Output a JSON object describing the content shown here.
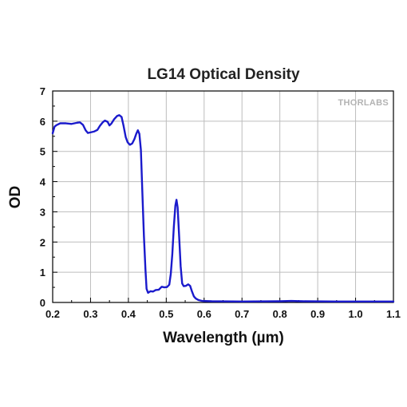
{
  "chart_data": {
    "type": "line",
    "title": "LG14 Optical Density",
    "xlabel": "Wavelength (µm)",
    "ylabel": "OD",
    "xlim": [
      0.2,
      1.1
    ],
    "ylim": [
      0,
      7
    ],
    "x_ticks": [
      "0.2",
      "0.3",
      "0.4",
      "0.5",
      "0.6",
      "0.7",
      "0.8",
      "0.9",
      "1.0",
      "1.1"
    ],
    "y_ticks": [
      "0",
      "1",
      "2",
      "3",
      "4",
      "5",
      "6",
      "7"
    ],
    "grid": true,
    "logo_text": "THORLABS",
    "series": [
      {
        "color": "#1a1acc",
        "points": [
          [
            0.2,
            5.6
          ],
          [
            0.205,
            5.82
          ],
          [
            0.21,
            5.87
          ],
          [
            0.22,
            5.93
          ],
          [
            0.235,
            5.93
          ],
          [
            0.25,
            5.91
          ],
          [
            0.265,
            5.95
          ],
          [
            0.272,
            5.96
          ],
          [
            0.28,
            5.88
          ],
          [
            0.287,
            5.7
          ],
          [
            0.293,
            5.61
          ],
          [
            0.3,
            5.63
          ],
          [
            0.31,
            5.66
          ],
          [
            0.318,
            5.71
          ],
          [
            0.325,
            5.85
          ],
          [
            0.332,
            5.96
          ],
          [
            0.338,
            6.02
          ],
          [
            0.345,
            5.98
          ],
          [
            0.35,
            5.86
          ],
          [
            0.355,
            5.92
          ],
          [
            0.362,
            6.06
          ],
          [
            0.37,
            6.17
          ],
          [
            0.376,
            6.2
          ],
          [
            0.382,
            6.14
          ],
          [
            0.387,
            5.86
          ],
          [
            0.393,
            5.47
          ],
          [
            0.398,
            5.3
          ],
          [
            0.404,
            5.22
          ],
          [
            0.41,
            5.26
          ],
          [
            0.416,
            5.41
          ],
          [
            0.421,
            5.59
          ],
          [
            0.425,
            5.7
          ],
          [
            0.429,
            5.58
          ],
          [
            0.433,
            5.05
          ],
          [
            0.437,
            3.6
          ],
          [
            0.441,
            2.2
          ],
          [
            0.445,
            1.1
          ],
          [
            0.448,
            0.45
          ],
          [
            0.452,
            0.32
          ],
          [
            0.458,
            0.37
          ],
          [
            0.465,
            0.36
          ],
          [
            0.472,
            0.41
          ],
          [
            0.48,
            0.42
          ],
          [
            0.488,
            0.52
          ],
          [
            0.495,
            0.5
          ],
          [
            0.502,
            0.51
          ],
          [
            0.508,
            0.59
          ],
          [
            0.512,
            0.95
          ],
          [
            0.516,
            1.6
          ],
          [
            0.52,
            2.5
          ],
          [
            0.524,
            3.2
          ],
          [
            0.527,
            3.4
          ],
          [
            0.53,
            3.15
          ],
          [
            0.534,
            2.2
          ],
          [
            0.538,
            1.2
          ],
          [
            0.542,
            0.63
          ],
          [
            0.546,
            0.54
          ],
          [
            0.552,
            0.55
          ],
          [
            0.558,
            0.6
          ],
          [
            0.563,
            0.55
          ],
          [
            0.568,
            0.36
          ],
          [
            0.573,
            0.2
          ],
          [
            0.578,
            0.13
          ],
          [
            0.585,
            0.08
          ],
          [
            0.595,
            0.05
          ],
          [
            0.62,
            0.04
          ],
          [
            0.7,
            0.03
          ],
          [
            0.8,
            0.04
          ],
          [
            0.83,
            0.05
          ],
          [
            0.86,
            0.04
          ],
          [
            0.95,
            0.03
          ],
          [
            1.05,
            0.03
          ],
          [
            1.1,
            0.03
          ]
        ]
      }
    ]
  }
}
